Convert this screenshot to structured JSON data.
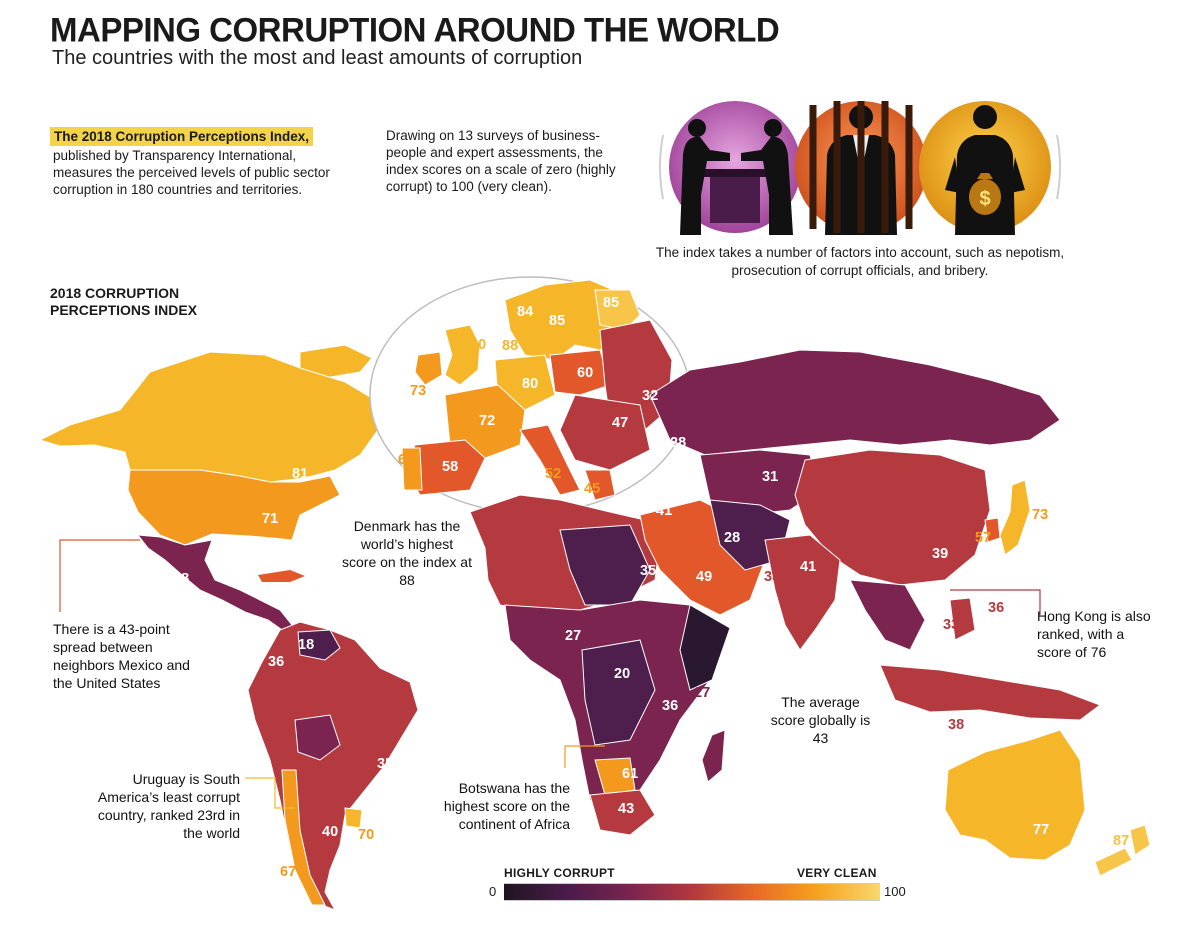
{
  "header": {
    "title": "MAPPING CORRUPTION AROUND THE WORLD",
    "subtitle": "The countries with the most and least amounts of corruption"
  },
  "intro": {
    "highlight": "The 2018 Corruption Perceptions Index,",
    "body": "published by Transparency International, measures the perceived levels of public sector corruption in 180 countries and territories."
  },
  "method": "Drawing on 13 surveys of business-people and expert assessments, the index scores on a scale of zero (highly corrupt) to 100 (very clean).",
  "factors": "The index takes a number of factors into account, such as nepotism, prosecution of corrupt officials, and bribery.",
  "map_title": "2018 CORRUPTION PERCEPTIONS INDEX",
  "annotations": {
    "denmark": "Denmark has the world’s highest score on the index at 88",
    "mexico": "There is a 43-point spread between neighbors Mexico and the United States",
    "uruguay": "Uruguay is South America’s least corrupt country, ranked 23rd in the world",
    "botswana": "Botswana has the highest score on the continent of Africa",
    "average": "The average score globally is 43",
    "hongkong": "Hong Kong is also ranked, with a score of 76"
  },
  "legend": {
    "low_label": "HIGHLY CORRUPT",
    "high_label": "VERY CLEAN",
    "min": "0",
    "max": "100",
    "gradient": [
      "#201422",
      "#4a1c4a",
      "#7a2450",
      "#b3383e",
      "#e86a26",
      "#f6a21e",
      "#f9d86e"
    ]
  },
  "colors": {
    "very_clean": "#f5b62a",
    "clean": "#f39a1e",
    "mid": "#e2582a",
    "corrupt": "#b53a3f",
    "very_corrupt": "#7b2450",
    "most_corrupt": "#4e1e4c",
    "lowest": "#2a1730",
    "highlight": "#f2d34a"
  },
  "map_scores": {
    "canada": "81",
    "usa": "71",
    "mexico": "28",
    "venezuela": "18",
    "colombia": "36",
    "brazil": "35",
    "argentina": "40",
    "uruguay": "70",
    "chile": "67",
    "russia": "28",
    "kazakhstan": "31",
    "pakistan": "28",
    "india": "41",
    "china": "39",
    "japan": "73",
    "south_korea": "57",
    "bangladesh": "33",
    "philippines": "36",
    "thailand": "33",
    "indonesia": "38",
    "australia": "77",
    "new_zealand": "87",
    "saudi_arabia": "49",
    "turkey": "41",
    "sudan": "35",
    "nigeria": "27",
    "drc": "20",
    "somalia_kenya": "27",
    "tanzania": "36",
    "botswana": "61",
    "south_africa": "43",
    "sweden": "85",
    "norway": "84",
    "finland": "85",
    "denmark": "88",
    "uk": "80",
    "ireland": "73",
    "germany": "80",
    "poland": "60",
    "belarus_ukraine": "32",
    "romania": "47",
    "france": "72",
    "spain": "58",
    "portugal": "64",
    "italy": "52",
    "greece": "45"
  }
}
